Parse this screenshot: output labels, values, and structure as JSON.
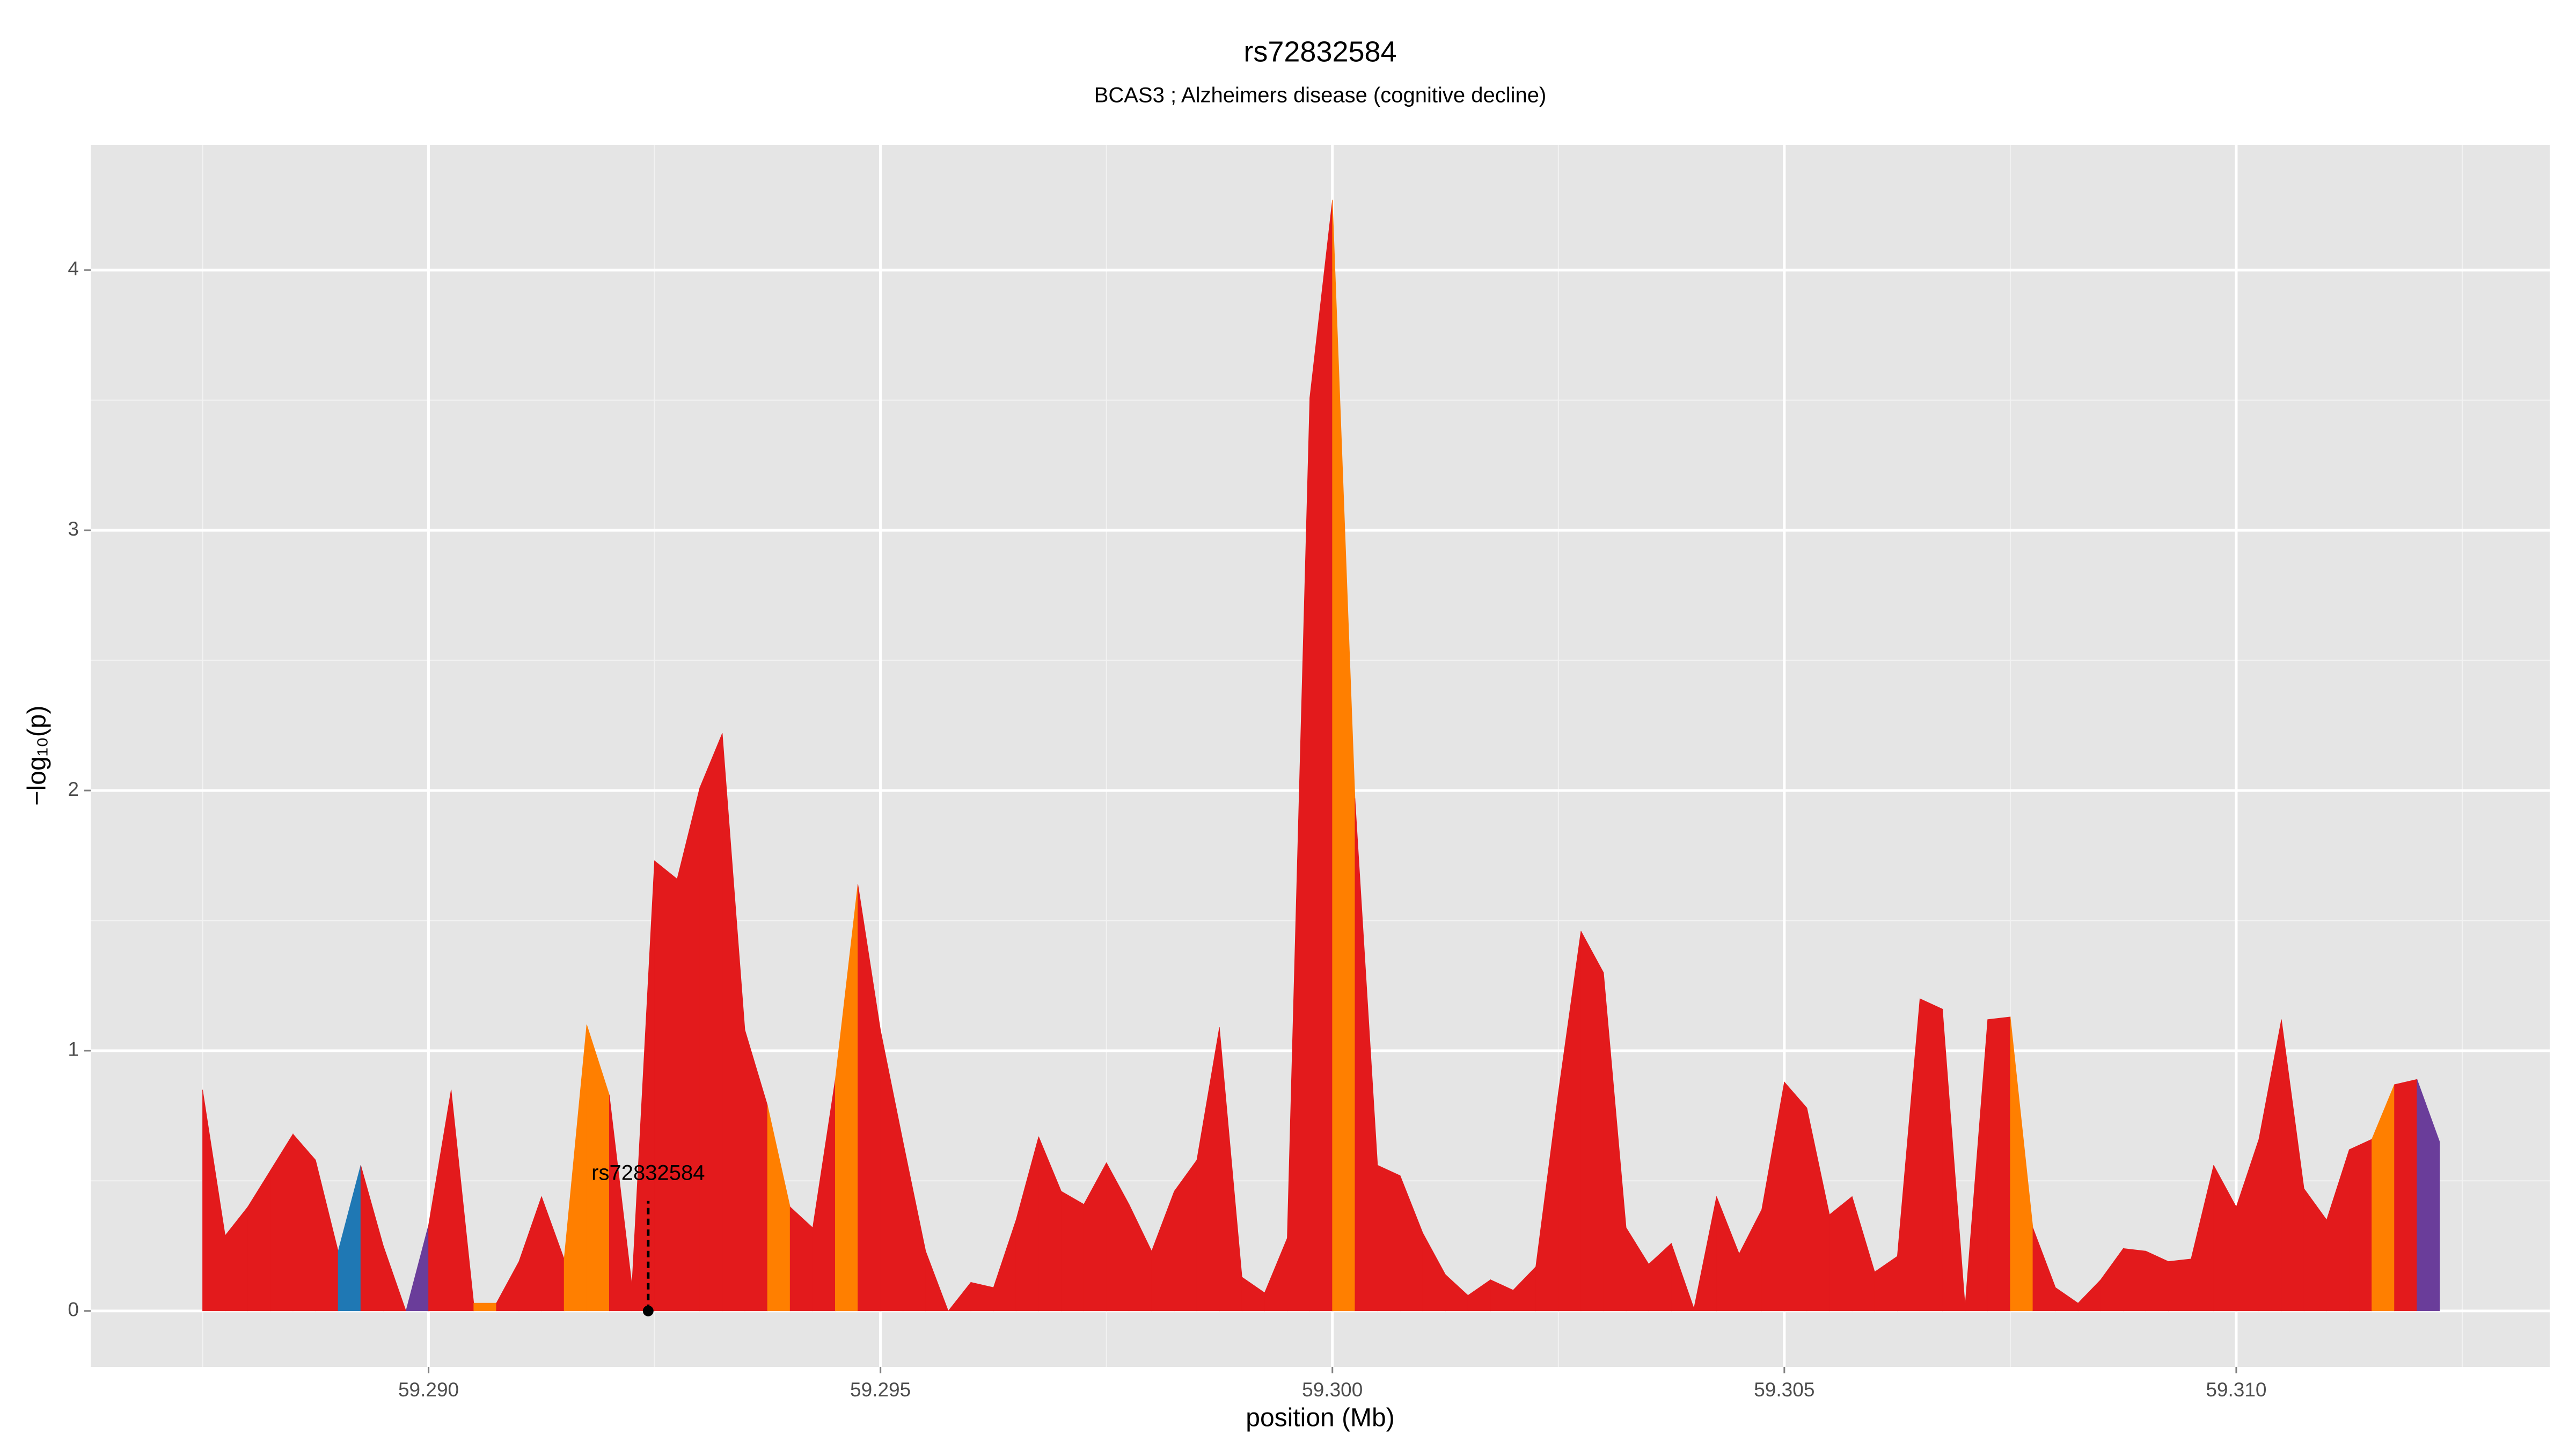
{
  "chart_data": {
    "type": "area",
    "title": "rs72832584",
    "subtitle": "BCAS3 ; Alzheimers disease (cognitive decline)",
    "xlabel": "position (Mb)",
    "ylabel": "−log₁₀(p)",
    "x": [
      59.2875,
      59.28775,
      59.288,
      59.28825,
      59.2885,
      59.28875,
      59.289,
      59.28925,
      59.2895,
      59.28975,
      59.29,
      59.29025,
      59.2905,
      59.29075,
      59.291,
      59.29125,
      59.2915,
      59.29175,
      59.292,
      59.29225,
      59.2925,
      59.29275,
      59.293,
      59.29325,
      59.2935,
      59.29375,
      59.294,
      59.29425,
      59.2945,
      59.29475,
      59.295,
      59.29525,
      59.2955,
      59.29575,
      59.296,
      59.29625,
      59.2965,
      59.29675,
      59.297,
      59.29725,
      59.2975,
      59.29775,
      59.298,
      59.29825,
      59.2985,
      59.29875,
      59.299,
      59.29925,
      59.2995,
      59.29975,
      59.3,
      59.30025,
      59.3005,
      59.30075,
      59.301,
      59.30125,
      59.3015,
      59.30175,
      59.302,
      59.30225,
      59.3025,
      59.30275,
      59.303,
      59.30325,
      59.3035,
      59.30375,
      59.304,
      59.30425,
      59.3045,
      59.30475,
      59.305,
      59.30525,
      59.3055,
      59.30575,
      59.306,
      59.30625,
      59.3065,
      59.30675,
      59.307,
      59.30725,
      59.3075,
      59.30775,
      59.308,
      59.30825,
      59.3085,
      59.30875,
      59.309,
      59.30925,
      59.3095,
      59.30975,
      59.31,
      59.31025,
      59.3105,
      59.31075,
      59.311,
      59.31125,
      59.3115,
      59.31175,
      59.312,
      59.31225
    ],
    "values": [
      0.85,
      0.29,
      0.4,
      0.54,
      0.68,
      0.58,
      0.23,
      0.56,
      0.25,
      0.0,
      0.33,
      0.85,
      0.03,
      0.03,
      0.19,
      0.44,
      0.2,
      1.1,
      0.83,
      0.1,
      1.73,
      1.66,
      2.01,
      2.22,
      1.08,
      0.79,
      0.4,
      0.32,
      0.89,
      1.64,
      1.08,
      0.65,
      0.23,
      0.0,
      0.11,
      0.09,
      0.35,
      0.67,
      0.46,
      0.41,
      0.57,
      0.41,
      0.23,
      0.46,
      0.58,
      1.09,
      0.13,
      0.07,
      0.28,
      3.51,
      4.27,
      1.97,
      0.56,
      0.52,
      0.3,
      0.14,
      0.06,
      0.12,
      0.08,
      0.17,
      0.84,
      1.46,
      1.3,
      0.32,
      0.18,
      0.26,
      0.01,
      0.44,
      0.22,
      0.39,
      0.88,
      0.78,
      0.37,
      0.44,
      0.15,
      0.21,
      1.2,
      1.16,
      0.02,
      1.12,
      1.13,
      0.32,
      0.09,
      0.03,
      0.12,
      0.24,
      0.23,
      0.19,
      0.2,
      0.56,
      0.4,
      0.66,
      1.12,
      0.47,
      0.35,
      0.62,
      0.66,
      0.87,
      0.89,
      0.65
    ],
    "segment_colors": [
      "#e31a1c",
      "#e31a1c",
      "#e31a1c",
      "#e31a1c",
      "#e31a1c",
      "#e31a1c",
      "#1f78b4",
      "#e31a1c",
      "#e31a1c",
      "#6a3d9a",
      "#e31a1c",
      "#e31a1c",
      "#ff7f00",
      "#e31a1c",
      "#e31a1c",
      "#e31a1c",
      "#ff7f00",
      "#ff7f00",
      "#e31a1c",
      "#e31a1c",
      "#e31a1c",
      "#e31a1c",
      "#e31a1c",
      "#e31a1c",
      "#e31a1c",
      "#ff7f00",
      "#e31a1c",
      "#e31a1c",
      "#ff7f00",
      "#e31a1c",
      "#e31a1c",
      "#e31a1c",
      "#e31a1c",
      "#e31a1c",
      "#e31a1c",
      "#e31a1c",
      "#e31a1c",
      "#e31a1c",
      "#e31a1c",
      "#e31a1c",
      "#e31a1c",
      "#e31a1c",
      "#e31a1c",
      "#e31a1c",
      "#e31a1c",
      "#e31a1c",
      "#e31a1c",
      "#e31a1c",
      "#e31a1c",
      "#e31a1c",
      "#ff7f00",
      "#e31a1c",
      "#e31a1c",
      "#e31a1c",
      "#e31a1c",
      "#e31a1c",
      "#e31a1c",
      "#e31a1c",
      "#e31a1c",
      "#e31a1c",
      "#e31a1c",
      "#e31a1c",
      "#e31a1c",
      "#e31a1c",
      "#e31a1c",
      "#e31a1c",
      "#e31a1c",
      "#e31a1c",
      "#e31a1c",
      "#e31a1c",
      "#e31a1c",
      "#e31a1c",
      "#e31a1c",
      "#e31a1c",
      "#e31a1c",
      "#e31a1c",
      "#e31a1c",
      "#e31a1c",
      "#e31a1c",
      "#e31a1c",
      "#ff7f00",
      "#e31a1c",
      "#e31a1c",
      "#e31a1c",
      "#e31a1c",
      "#e31a1c",
      "#e31a1c",
      "#e31a1c",
      "#e31a1c",
      "#e31a1c",
      "#e31a1c",
      "#e31a1c",
      "#e31a1c",
      "#e31a1c",
      "#e31a1c",
      "#e31a1c",
      "#ff7f00",
      "#e31a1c",
      "#6a3d9a"
    ],
    "annotation": {
      "label": "rs72832584",
      "x": 59.29243,
      "y": 0
    },
    "xlim": [
      59.286262,
      59.313468
    ],
    "ylim": [
      -0.215,
      4.481
    ],
    "xticks": [
      {
        "value": 59.29,
        "label": "59.290"
      },
      {
        "value": 59.295,
        "label": "59.295"
      },
      {
        "value": 59.3,
        "label": "59.300"
      },
      {
        "value": 59.305,
        "label": "59.305"
      },
      {
        "value": 59.31,
        "label": "59.310"
      }
    ],
    "xminor": [
      59.2875,
      59.2925,
      59.2975,
      59.3025,
      59.3075,
      59.3125
    ],
    "yticks": [
      0,
      1,
      2,
      3,
      4
    ],
    "yminor": [
      0.5,
      1.5,
      2.5,
      3.5
    ],
    "grid": true
  }
}
